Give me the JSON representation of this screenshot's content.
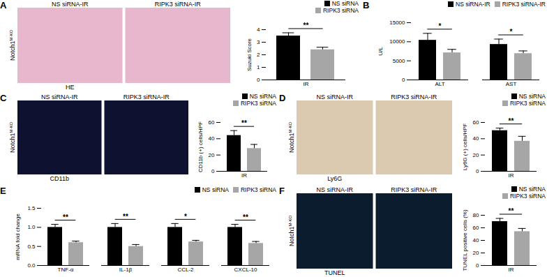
{
  "chart_data": [
    {
      "type": "bar",
      "panel": "A",
      "images": {
        "group": {
          "text": "Notch1",
          "superscript": "M-KO"
        },
        "titles": [
          "NS siRNA-IR",
          "RIPK3 siRNA-IR"
        ],
        "stain": "HE"
      },
      "ylabel": "Suzuki Score",
      "categories": [
        "IR"
      ],
      "series": [
        {
          "name": "NS siRNA",
          "color": "#000000",
          "values": [
            3.5
          ],
          "errors": [
            0.25
          ]
        },
        {
          "name": "RIPK3 siRNA",
          "color": "#a6a6a6",
          "values": [
            2.4
          ],
          "errors": [
            0.2
          ]
        }
      ],
      "significance": [
        "**"
      ],
      "ylim": [
        0,
        4
      ],
      "yticks": [
        0,
        1,
        2,
        3,
        4
      ],
      "legend": "top right"
    },
    {
      "type": "bar",
      "panel": "B",
      "ylabel": "U/L",
      "categories": [
        "ALT",
        "AST"
      ],
      "series": [
        {
          "name": "NS siRNA-IR",
          "color": "#000000",
          "values": [
            10400,
            9300
          ],
          "errors": [
            1800,
            1400
          ]
        },
        {
          "name": "RIPK3 siRNA-IR",
          "color": "#a6a6a6",
          "values": [
            7100,
            6900
          ],
          "errors": [
            900,
            700
          ]
        }
      ],
      "significance": [
        "*",
        "*"
      ],
      "ylim": [
        0,
        15000
      ],
      "yticks": [
        0,
        5000,
        10000,
        15000
      ],
      "legend": "top right"
    },
    {
      "type": "bar",
      "panel": "C",
      "images": {
        "group": {
          "text": "Notch1",
          "superscript": "M-KO"
        },
        "titles": [
          "NS siRNA-IR",
          "RIPK3 siRNA-IR"
        ],
        "stain": "CD11b"
      },
      "ylabel": "CD11b (+) cells/HPF",
      "categories": [
        "IR"
      ],
      "series": [
        {
          "name": "NS siRNA",
          "color": "#000000",
          "values": [
            44
          ],
          "errors": [
            6
          ]
        },
        {
          "name": "RIPK3 siRNA",
          "color": "#a6a6a6",
          "values": [
            28
          ],
          "errors": [
            5
          ]
        }
      ],
      "significance": [
        "**"
      ],
      "ylim": [
        0,
        60
      ],
      "yticks": [
        0,
        20,
        40,
        60
      ],
      "legend": "top right"
    },
    {
      "type": "bar",
      "panel": "D",
      "images": {
        "group": {
          "text": "Notch1",
          "superscript": "M-KO"
        },
        "titles": [
          "NS siRNA-IR",
          "RIPK3 siRNA-IR"
        ],
        "stain": "Ly6G"
      },
      "ylabel": "Ly6G (+) cells/HPF",
      "categories": [
        "IR"
      ],
      "series": [
        {
          "name": "NS siRNA",
          "color": "#000000",
          "values": [
            50
          ],
          "errors": [
            3
          ]
        },
        {
          "name": "RIPK3 siRNA",
          "color": "#a6a6a6",
          "values": [
            37
          ],
          "errors": [
            6
          ]
        }
      ],
      "significance": [
        "**"
      ],
      "ylim": [
        0,
        60
      ],
      "yticks": [
        0,
        20,
        40,
        60
      ],
      "legend": "top right"
    },
    {
      "type": "bar",
      "panel": "E",
      "ylabel": "mRNA fold change",
      "categories": [
        "TNF-α",
        "IL-1β",
        "CCL-2",
        "CXCL-10"
      ],
      "series": [
        {
          "name": "NS siRNA",
          "color": "#000000",
          "values": [
            1.0,
            1.0,
            1.0,
            1.0
          ],
          "errors": [
            0.08,
            0.1,
            0.1,
            0.08
          ]
        },
        {
          "name": "RIPK3 siRNA",
          "color": "#a6a6a6",
          "values": [
            0.6,
            0.5,
            0.62,
            0.58
          ],
          "errors": [
            0.04,
            0.05,
            0.04,
            0.05
          ]
        }
      ],
      "significance": [
        "**",
        "**",
        "*",
        "**"
      ],
      "ylim": [
        0,
        1.5
      ],
      "yticks": [
        {
          "value": 0,
          "label": "0.0"
        },
        {
          "value": 0.5,
          "label": "0.5"
        },
        {
          "value": 1,
          "label": "1.0"
        },
        {
          "value": 1.5,
          "label": "1.5"
        }
      ],
      "legend": "top right"
    },
    {
      "type": "bar",
      "panel": "F",
      "images": {
        "group": {
          "text": "Notch1",
          "superscript": "M-KO"
        },
        "titles": [
          "NS siRNA-IR",
          "RIPK3 siRNA-IR"
        ],
        "stain": "TUNEL"
      },
      "ylabel": "TUNEL positive cells (%)",
      "categories": [
        "IR"
      ],
      "series": [
        {
          "name": "NS siRNA",
          "color": "#000000",
          "values": [
            70
          ],
          "errors": [
            5
          ]
        },
        {
          "name": "RIPK3 siRNA",
          "color": "#a6a6a6",
          "values": [
            54
          ],
          "errors": [
            5
          ]
        }
      ],
      "significance": [
        "**"
      ],
      "ylim": [
        0,
        80
      ],
      "yticks": [
        0,
        20,
        40,
        60,
        80
      ],
      "legend": "top right"
    }
  ]
}
